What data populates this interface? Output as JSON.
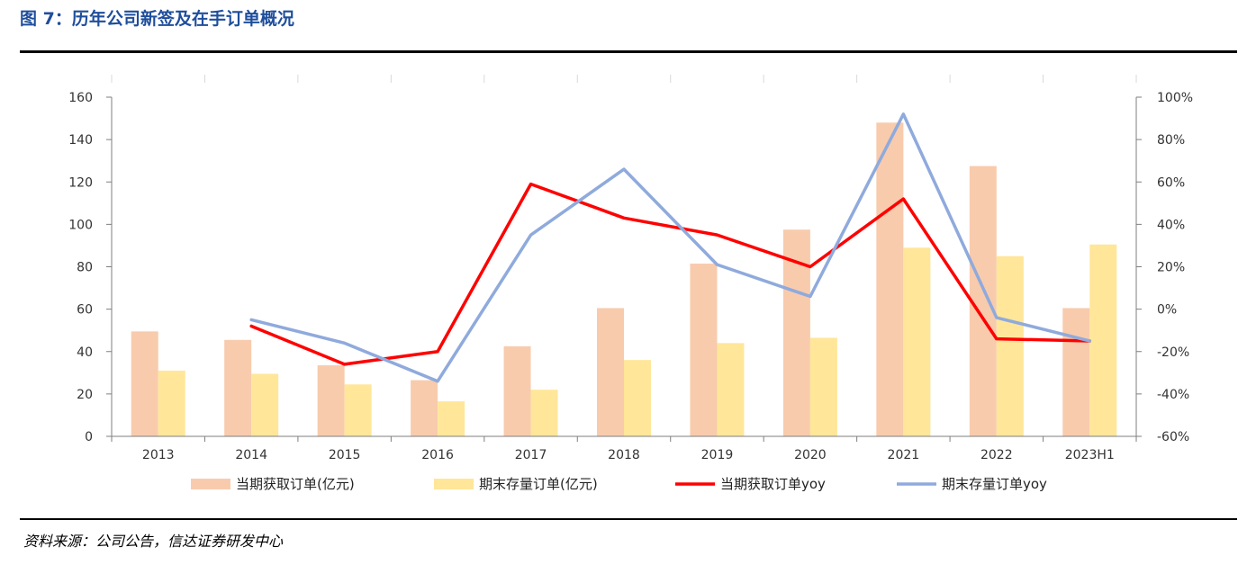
{
  "figure": {
    "title": "图 7：历年公司新签及在手订单概况",
    "source": "资料来源：公司公告，信达证券研发中心"
  },
  "colors": {
    "title": "#1f4e9c",
    "bar_new": "#f8cbad",
    "bar_backlog": "#ffe699",
    "line_new": "#ff0000",
    "line_backlog": "#8faadc"
  },
  "chart_data": {
    "type": "bar",
    "categories": [
      "2013",
      "2014",
      "2015",
      "2016",
      "2017",
      "2018",
      "2019",
      "2020",
      "2021",
      "2022",
      "2023H1"
    ],
    "series": [
      {
        "name": "当期获取订单(亿元)",
        "kind": "bar",
        "axis": "left",
        "values": [
          49.5,
          45.5,
          33.5,
          26.5,
          42.5,
          60.5,
          81.5,
          97.5,
          148,
          127.5,
          60.5
        ]
      },
      {
        "name": "期末存量订单(亿元)",
        "kind": "bar",
        "axis": "left",
        "values": [
          31,
          29.5,
          24.5,
          16.5,
          22,
          36,
          44,
          46.5,
          89,
          85,
          90.5
        ]
      },
      {
        "name": "当期获取订单yoy",
        "kind": "line",
        "axis": "right",
        "values": [
          null,
          -8,
          -26,
          -20,
          59,
          43,
          35,
          20,
          52,
          -14,
          -15
        ]
      },
      {
        "name": "期末存量订单yoy",
        "kind": "line",
        "axis": "right",
        "values": [
          null,
          -5,
          -16,
          -34,
          35,
          66,
          21,
          6,
          92,
          -4,
          -15
        ]
      }
    ],
    "yaxis_left": {
      "min": 0,
      "max": 160,
      "step": 20,
      "ticks": [
        "0",
        "20",
        "40",
        "60",
        "80",
        "100",
        "120",
        "140",
        "160"
      ]
    },
    "yaxis_right": {
      "min": -60,
      "max": 100,
      "step": 20,
      "ticks": [
        "-60%",
        "-40%",
        "-20%",
        "0%",
        "20%",
        "40%",
        "60%",
        "80%",
        "100%"
      ]
    },
    "grid": false,
    "legend_position": "bottom"
  }
}
